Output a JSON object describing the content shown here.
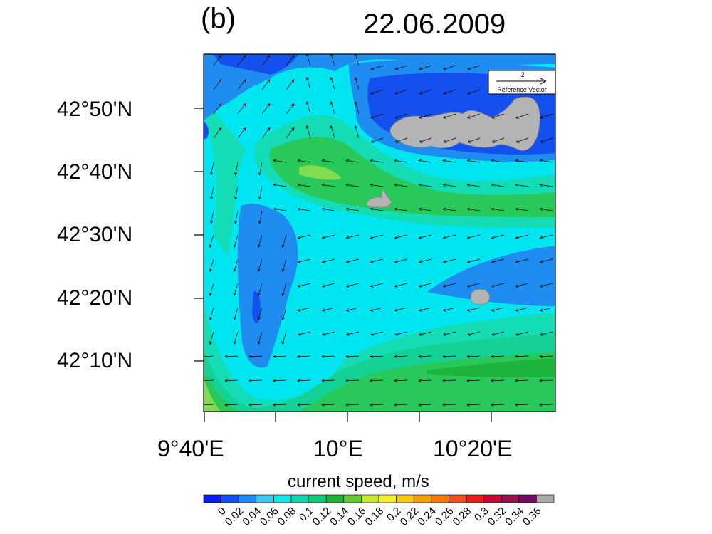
{
  "panel_label": "(b)",
  "date": "22.06.2009",
  "y_axis": {
    "ticks": [
      "42°50'N",
      "42°40'N",
      "42°30'N",
      "42°20'N",
      "42°10'N"
    ]
  },
  "x_axis": {
    "ticks": [
      "9°40'E",
      "10°E",
      "10°20'E"
    ]
  },
  "reference_vector": {
    "magnitude": ".2",
    "label": "Reference Vector"
  },
  "colorbar": {
    "title": "current speed, m/s",
    "levels": [
      "0",
      "0.02",
      "0.04",
      "0.06",
      "0.08",
      "0.1",
      "0.12",
      "0.14",
      "0.16",
      "0.18",
      "0.2",
      "0.22",
      "0.24",
      "0.26",
      "0.28",
      "0.3",
      "0.32",
      "0.34",
      "0.36"
    ],
    "colors": [
      "#0a1ef0",
      "#1450f5",
      "#1e8cf5",
      "#3cc8f0",
      "#14e6e6",
      "#14d2aa",
      "#14c878",
      "#1eb43c",
      "#64c832",
      "#c8e632",
      "#f0f028",
      "#f5c814",
      "#f5a00a",
      "#f5780a",
      "#f0501e",
      "#e61e1e",
      "#c80a32",
      "#961450",
      "#780a64",
      "#aaaaaa"
    ]
  },
  "map": {
    "colors": {
      "deep_blue": "#1450f0",
      "blue": "#1e8cf0",
      "cyan": "#00e6f0",
      "teal": "#14dcb4",
      "green_teal": "#14d296",
      "green": "#28c85a",
      "green_dark": "#1eb43c",
      "light_green": "#82dc50",
      "land": "#b4b4b4"
    }
  }
}
